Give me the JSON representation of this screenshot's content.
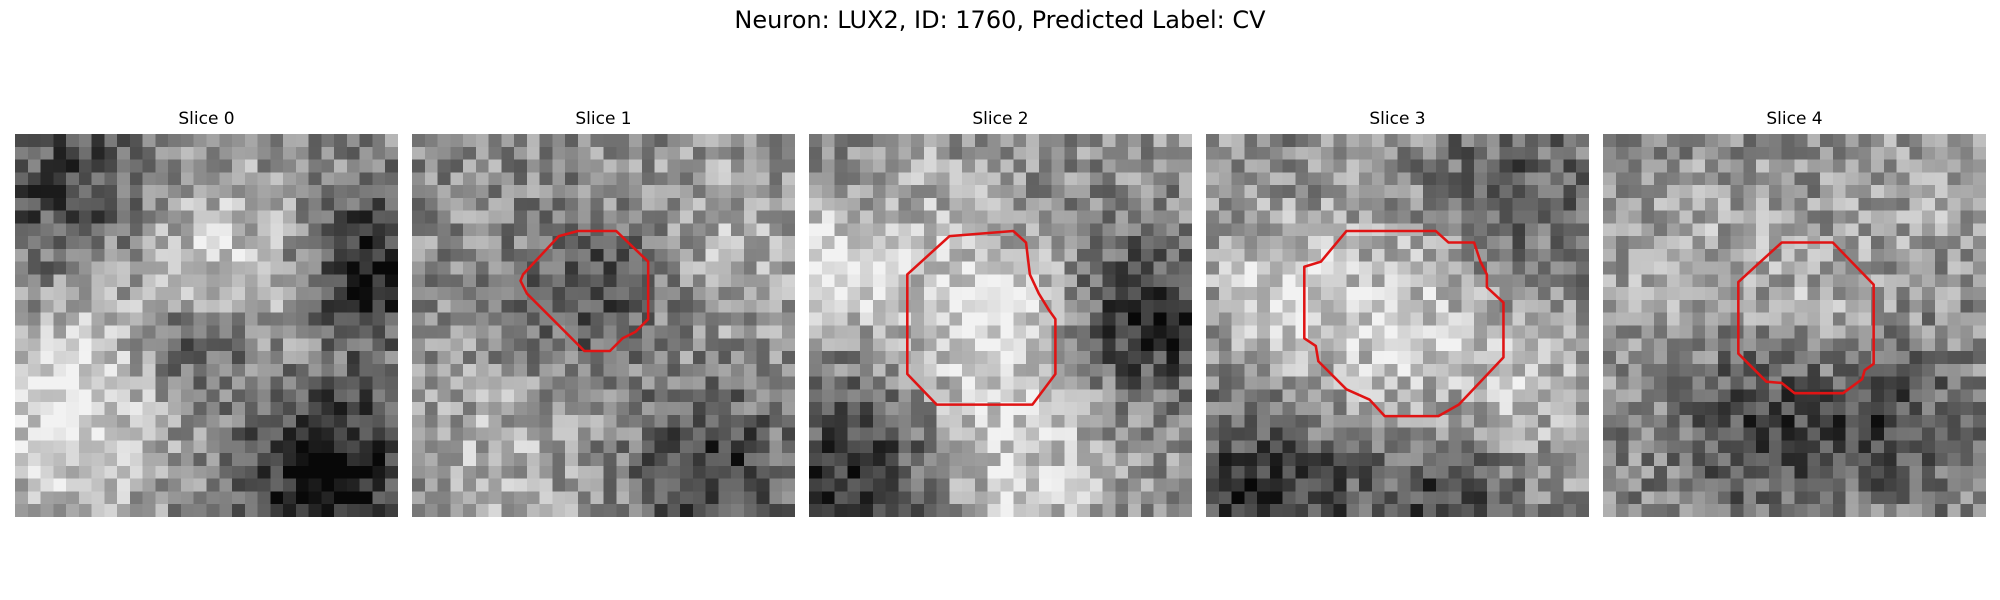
{
  "figure": {
    "title": "Neuron: LUX2, ID: 1760, Predicted Label: CV",
    "contour_color": "#e01414",
    "panels": [
      {
        "title": "Slice 0",
        "has_contour": false,
        "seed": 11
      },
      {
        "title": "Slice 1",
        "has_contour": true,
        "seed": 23
      },
      {
        "title": "Slice 2",
        "has_contour": true,
        "seed": 37
      },
      {
        "title": "Slice 3",
        "has_contour": true,
        "seed": 41
      },
      {
        "title": "Slice 4",
        "has_contour": true,
        "seed": 53
      }
    ]
  }
}
